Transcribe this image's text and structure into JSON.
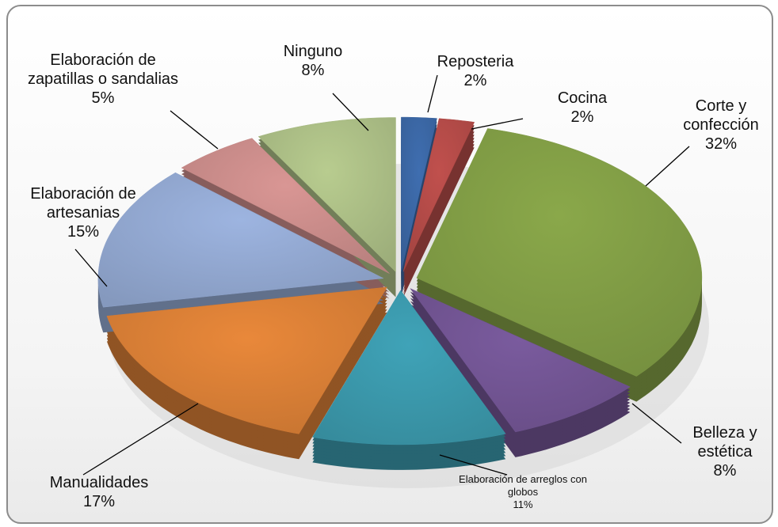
{
  "chart_data": {
    "type": "pie",
    "categories": [
      "Reposteria",
      "Cocina",
      "Corte y confección",
      "Belleza y estética",
      "Elaboración de arreglos con globos",
      "Manualidades",
      "Elaboración de artesanias",
      "Elaboración de zapatillas o sandalias",
      "Ninguno"
    ],
    "values": [
      2,
      2,
      32,
      8,
      11,
      17,
      15,
      5,
      8
    ],
    "value_labels": [
      "2%",
      "2%",
      "32%",
      "8%",
      "11%",
      "17%",
      "15%",
      "5%",
      "8%"
    ],
    "colors": [
      "#3f6eb0",
      "#c0504d",
      "#8aa84a",
      "#7a5b9e",
      "#3fa3b8",
      "#e9883a",
      "#9db4e0",
      "#d99694",
      "#b8cc8f"
    ]
  }
}
